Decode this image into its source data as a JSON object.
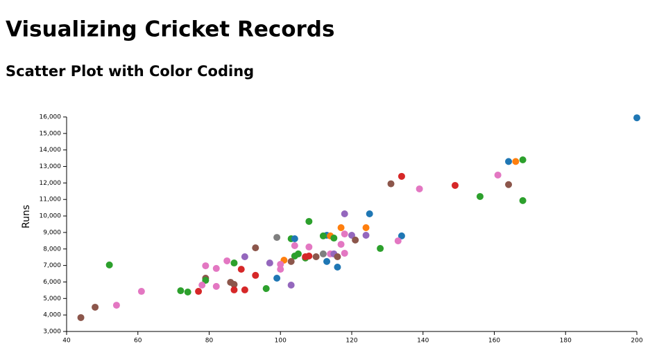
{
  "chart_data": {
    "type": "scatter",
    "title": "Visualizing Cricket Records",
    "subtitle": "Scatter Plot with Color Coding",
    "y_label": "Runs",
    "xlim": [
      40,
      200
    ],
    "ylim": [
      3000,
      16000
    ],
    "xticks": [
      40,
      60,
      80,
      100,
      120,
      140,
      160,
      180,
      200
    ],
    "yticks": [
      {
        "value": 3000,
        "label": "3,000"
      },
      {
        "value": 4000,
        "label": "4,000"
      },
      {
        "value": 5000,
        "label": "5,000"
      },
      {
        "value": 6000,
        "label": "6,000"
      },
      {
        "value": 7000,
        "label": "7,000"
      },
      {
        "value": 8000,
        "label": "8,000"
      },
      {
        "value": 9000,
        "label": "9,000"
      },
      {
        "value": 10000,
        "label": "10,000"
      },
      {
        "value": 11000,
        "label": "11,000"
      },
      {
        "value": 12000,
        "label": "12,000"
      },
      {
        "value": 13000,
        "label": "13,000"
      },
      {
        "value": 14000,
        "label": "14,000"
      },
      {
        "value": 15000,
        "label": "15,000"
      },
      {
        "value": 16000,
        "label": "16,000"
      }
    ],
    "x": [
      200,
      164,
      166,
      168,
      134,
      131,
      139,
      149,
      161,
      164,
      156,
      168,
      125,
      118,
      108,
      117,
      124,
      113,
      112,
      114,
      115,
      118,
      120,
      124,
      121,
      134,
      133,
      128,
      99,
      103,
      104,
      93,
      104,
      108,
      117,
      90,
      104,
      105,
      107,
      107,
      108,
      110,
      112,
      114,
      115,
      116,
      118,
      85,
      97,
      101,
      103,
      100,
      100,
      87,
      79,
      82,
      89,
      52,
      113,
      116,
      79,
      79,
      93,
      99,
      86,
      87,
      78,
      82,
      103,
      96,
      87,
      90,
      72,
      74,
      77,
      61,
      54,
      48,
      44
    ],
    "y": [
      15950,
      13300,
      13300,
      13400,
      12400,
      11950,
      11640,
      11850,
      12480,
      11900,
      11180,
      10930,
      10130,
      10130,
      9670,
      9290,
      9290,
      8830,
      8790,
      8790,
      8660,
      8910,
      8830,
      8830,
      8540,
      8790,
      8490,
      8030,
      8700,
      8620,
      8620,
      8070,
      8200,
      8120,
      8280,
      7530,
      7570,
      7700,
      7450,
      7530,
      7570,
      7530,
      7700,
      7700,
      7700,
      7530,
      7740,
      7280,
      7150,
      7320,
      7240,
      7070,
      6770,
      7150,
      6980,
      6820,
      6770,
      7030,
      7240,
      6900,
      6230,
      6100,
      6400,
      6230,
      5980,
      5850,
      5810,
      5730,
      5810,
      5600,
      5520,
      5520,
      5470,
      5390,
      5430,
      5430,
      4590,
      4470,
      3840
    ],
    "colors": [
      "#1f77b4",
      "#1f77b4",
      "#ff7f0e",
      "#2ca02c",
      "#d62728",
      "#8c564b",
      "#e377c2",
      "#d62728",
      "#e377c2",
      "#8c564b",
      "#2ca02c",
      "#2ca02c",
      "#1f77b4",
      "#9467bd",
      "#2ca02c",
      "#ff7f0e",
      "#ff7f0e",
      "#1f77b4",
      "#2ca02c",
      "#ff7f0e",
      "#2ca02c",
      "#e377c2",
      "#9467bd",
      "#9467bd",
      "#8c564b",
      "#1f77b4",
      "#e377c2",
      "#2ca02c",
      "#7f7f7f",
      "#2ca02c",
      "#1f77b4",
      "#8c564b",
      "#e377c2",
      "#e377c2",
      "#e377c2",
      "#9467bd",
      "#2ca02c",
      "#2ca02c",
      "#2ca02c",
      "#d62728",
      "#d62728",
      "#8c564b",
      "#7f7f7f",
      "#e377c2",
      "#9467bd",
      "#8c564b",
      "#e377c2",
      "#e377c2",
      "#9467bd",
      "#ff7f0e",
      "#8c564b",
      "#e377c2",
      "#e377c2",
      "#2ca02c",
      "#e377c2",
      "#e377c2",
      "#d62728",
      "#2ca02c",
      "#1f77b4",
      "#1f77b4",
      "#8c564b",
      "#2ca02c",
      "#d62728",
      "#1f77b4",
      "#8c564b",
      "#8c564b",
      "#e377c2",
      "#e377c2",
      "#9467bd",
      "#2ca02c",
      "#d62728",
      "#d62728",
      "#2ca02c",
      "#2ca02c",
      "#d62728",
      "#e377c2",
      "#e377c2",
      "#8c564b",
      "#8c564b"
    ]
  }
}
